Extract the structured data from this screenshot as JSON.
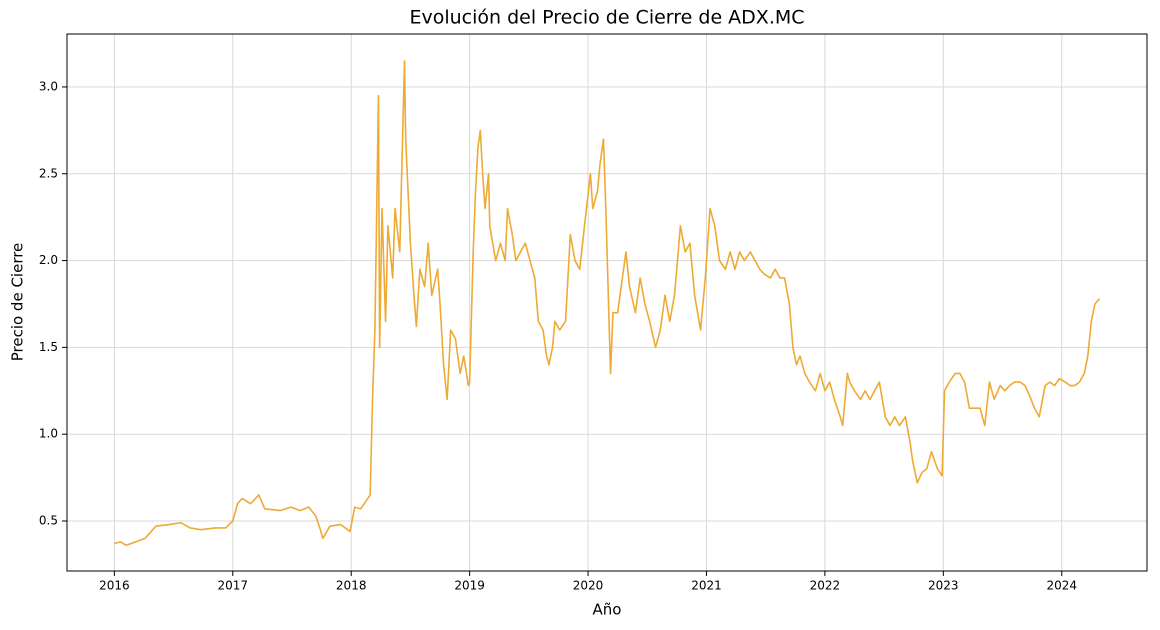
{
  "chart_data": {
    "type": "line",
    "title": "Evolución del Precio de Cierre de ADX.MC",
    "x_label": "Año",
    "y_label": "Precio de Cierre",
    "xlim": [
      2015.6,
      2024.72
    ],
    "ylim": [
      0.212,
      3.305
    ],
    "xticks": [
      2016,
      2017,
      2018,
      2019,
      2020,
      2021,
      2022,
      2023,
      2024
    ],
    "yticks": [
      0.5,
      {
        "value": 1,
        "label": "1.0"
      },
      1.5,
      {
        "value": 2,
        "label": "2.0"
      },
      2.5,
      {
        "value": 3,
        "label": "3.0"
      }
    ],
    "grid": true,
    "series": [
      {
        "color": "#eeaa33",
        "x": [
          2016.0,
          2016.05,
          2016.1,
          2016.18,
          2016.26,
          2016.35,
          2016.47,
          2016.56,
          2016.64,
          2016.73,
          2016.85,
          2016.94,
          2017.0,
          2017.04,
          2017.08,
          2017.15,
          2017.22,
          2017.27,
          2017.4,
          2017.49,
          2017.57,
          2017.64,
          2017.7,
          2017.74,
          2017.76,
          2017.82,
          2017.91,
          2017.95,
          2017.99,
          2018.03,
          2018.08,
          2018.13,
          2018.16,
          2018.18,
          2018.2,
          2018.23,
          2018.24,
          2018.26,
          2018.29,
          2018.31,
          2018.35,
          2018.37,
          2018.41,
          2018.45,
          2018.46,
          2018.5,
          2018.53,
          2018.55,
          2018.58,
          2018.62,
          2018.65,
          2018.68,
          2018.73,
          2018.75,
          2018.78,
          2018.81,
          2018.84,
          2018.88,
          2018.92,
          2018.95,
          2018.99,
          2019.0,
          2019.03,
          2019.05,
          2019.07,
          2019.09,
          2019.11,
          2019.13,
          2019.16,
          2019.17,
          2019.22,
          2019.26,
          2019.3,
          2019.32,
          2019.36,
          2019.39,
          2019.43,
          2019.47,
          2019.51,
          2019.55,
          2019.58,
          2019.62,
          2019.65,
          2019.67,
          2019.7,
          2019.72,
          2019.76,
          2019.81,
          2019.85,
          2019.89,
          2019.93,
          2019.97,
          2020.02,
          2020.04,
          2020.08,
          2020.1,
          2020.13,
          2020.15,
          2020.19,
          2020.21,
          2020.25,
          2020.29,
          2020.32,
          2020.35,
          2020.4,
          2020.44,
          2020.48,
          2020.52,
          2020.57,
          2020.61,
          2020.65,
          2020.69,
          2020.73,
          2020.78,
          2020.82,
          2020.86,
          2020.9,
          2020.95,
          2020.99,
          2021.03,
          2021.07,
          2021.11,
          2021.16,
          2021.2,
          2021.24,
          2021.28,
          2021.32,
          2021.37,
          2021.41,
          2021.45,
          2021.49,
          2021.54,
          2021.58,
          2021.62,
          2021.66,
          2021.7,
          2021.73,
          2021.76,
          2021.79,
          2021.83,
          2021.87,
          2021.92,
          2021.96,
          2022.0,
          2022.04,
          2022.08,
          2022.13,
          2022.15,
          2022.19,
          2022.21,
          2022.25,
          2022.3,
          2022.34,
          2022.38,
          2022.42,
          2022.46,
          2022.51,
          2022.55,
          2022.59,
          2022.63,
          2022.68,
          2022.72,
          2022.74,
          2022.78,
          2022.82,
          2022.86,
          2022.9,
          2022.95,
          2022.99,
          2023.01,
          2023.05,
          2023.1,
          2023.14,
          2023.18,
          2023.22,
          2023.27,
          2023.31,
          2023.35,
          2023.39,
          2023.43,
          2023.48,
          2023.52,
          2023.56,
          2023.6,
          2023.65,
          2023.69,
          2023.73,
          2023.77,
          2023.81,
          2023.86,
          2023.9,
          2023.94,
          2023.98,
          2024.03,
          2024.07,
          2024.11,
          2024.15,
          2024.19,
          2024.22,
          2024.25,
          2024.28,
          2024.32
        ],
        "values": [
          0.37,
          0.38,
          0.36,
          0.38,
          0.4,
          0.47,
          0.48,
          0.49,
          0.46,
          0.45,
          0.46,
          0.46,
          0.5,
          0.6,
          0.63,
          0.6,
          0.65,
          0.57,
          0.56,
          0.58,
          0.56,
          0.58,
          0.53,
          0.45,
          0.4,
          0.47,
          0.48,
          0.46,
          0.44,
          0.58,
          0.57,
          0.62,
          0.65,
          1.2,
          1.6,
          2.95,
          1.5,
          2.3,
          1.65,
          2.2,
          1.9,
          2.3,
          2.05,
          3.15,
          2.7,
          2.1,
          1.8,
          1.62,
          1.95,
          1.85,
          2.1,
          1.8,
          1.95,
          1.75,
          1.4,
          1.2,
          1.6,
          1.55,
          1.35,
          1.45,
          1.28,
          1.3,
          2.05,
          2.4,
          2.65,
          2.75,
          2.5,
          2.3,
          2.5,
          2.2,
          2.0,
          2.1,
          2.0,
          2.3,
          2.15,
          2.0,
          2.05,
          2.1,
          2.0,
          1.9,
          1.65,
          1.6,
          1.45,
          1.4,
          1.5,
          1.65,
          1.6,
          1.65,
          2.15,
          2.0,
          1.95,
          2.2,
          2.5,
          2.3,
          2.4,
          2.55,
          2.7,
          2.3,
          1.35,
          1.7,
          1.7,
          1.9,
          2.05,
          1.85,
          1.7,
          1.9,
          1.75,
          1.65,
          1.5,
          1.6,
          1.8,
          1.65,
          1.8,
          2.2,
          2.05,
          2.1,
          1.8,
          1.6,
          1.9,
          2.3,
          2.2,
          2.0,
          1.95,
          2.05,
          1.95,
          2.05,
          2.0,
          2.05,
          2.0,
          1.95,
          1.92,
          1.9,
          1.95,
          1.9,
          1.9,
          1.75,
          1.5,
          1.4,
          1.45,
          1.35,
          1.3,
          1.25,
          1.35,
          1.25,
          1.3,
          1.2,
          1.1,
          1.05,
          1.35,
          1.3,
          1.25,
          1.2,
          1.25,
          1.2,
          1.25,
          1.3,
          1.1,
          1.05,
          1.1,
          1.05,
          1.1,
          0.95,
          0.85,
          0.72,
          0.78,
          0.8,
          0.9,
          0.8,
          0.76,
          1.25,
          1.3,
          1.35,
          1.35,
          1.3,
          1.15,
          1.15,
          1.15,
          1.05,
          1.3,
          1.2,
          1.28,
          1.25,
          1.28,
          1.3,
          1.3,
          1.28,
          1.22,
          1.15,
          1.1,
          1.28,
          1.3,
          1.28,
          1.32,
          1.3,
          1.28,
          1.28,
          1.3,
          1.35,
          1.45,
          1.65,
          1.75,
          1.78
        ]
      }
    ]
  }
}
